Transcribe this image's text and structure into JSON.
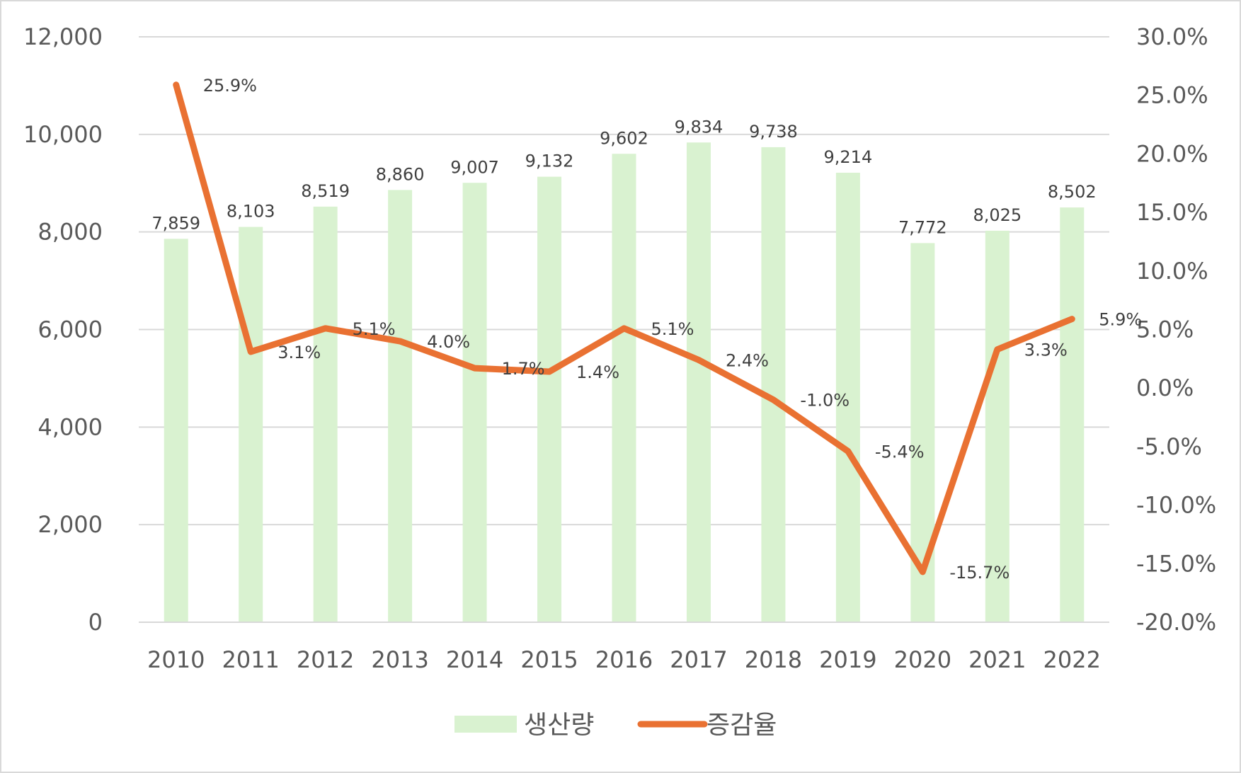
{
  "chart_data": {
    "type": "bar+line",
    "categories": [
      "2010",
      "2011",
      "2012",
      "2013",
      "2014",
      "2015",
      "2016",
      "2017",
      "2018",
      "2019",
      "2020",
      "2021",
      "2022"
    ],
    "series": [
      {
        "name": "생산량",
        "type": "bar",
        "axis": "left",
        "color": "#d9f2d0",
        "values": [
          7859,
          8103,
          8519,
          8860,
          9007,
          9132,
          9602,
          9834,
          9738,
          9214,
          7772,
          8025,
          8502
        ],
        "labels": [
          "7,859",
          "8,103",
          "8,519",
          "8,860",
          "9,007",
          "9,132",
          "9,602",
          "9,834",
          "9,738",
          "9,214",
          "7,772",
          "8,025",
          "8,502"
        ]
      },
      {
        "name": "증감율",
        "type": "line",
        "axis": "right",
        "color": "#e97132",
        "values": [
          25.9,
          3.1,
          5.1,
          4.0,
          1.7,
          1.4,
          5.1,
          2.4,
          -1.0,
          -5.4,
          -15.7,
          3.3,
          5.9
        ],
        "labels": [
          "25.9%",
          "3.1%",
          "5.1%",
          "4.0%",
          "1.7%",
          "1.4%",
          "5.1%",
          "2.4%",
          "-1.0%",
          "-5.4%",
          "-15.7%",
          "3.3%",
          "5.9%"
        ]
      }
    ],
    "y_left": {
      "range": [
        0,
        12000
      ],
      "ticks": [
        "0",
        "2,000",
        "4,000",
        "6,000",
        "8,000",
        "10,000",
        "12,000"
      ]
    },
    "y_right": {
      "range": [
        -20,
        30
      ],
      "ticks": [
        "-20.0%",
        "-15.0%",
        "-10.0%",
        "-5.0%",
        "0.0%",
        "5.0%",
        "10.0%",
        "15.0%",
        "20.0%",
        "25.0%",
        "30.0%"
      ]
    },
    "grid": true,
    "legend": "bottom",
    "gridline_color": "#d9d9d9",
    "text_color": "#595959"
  }
}
